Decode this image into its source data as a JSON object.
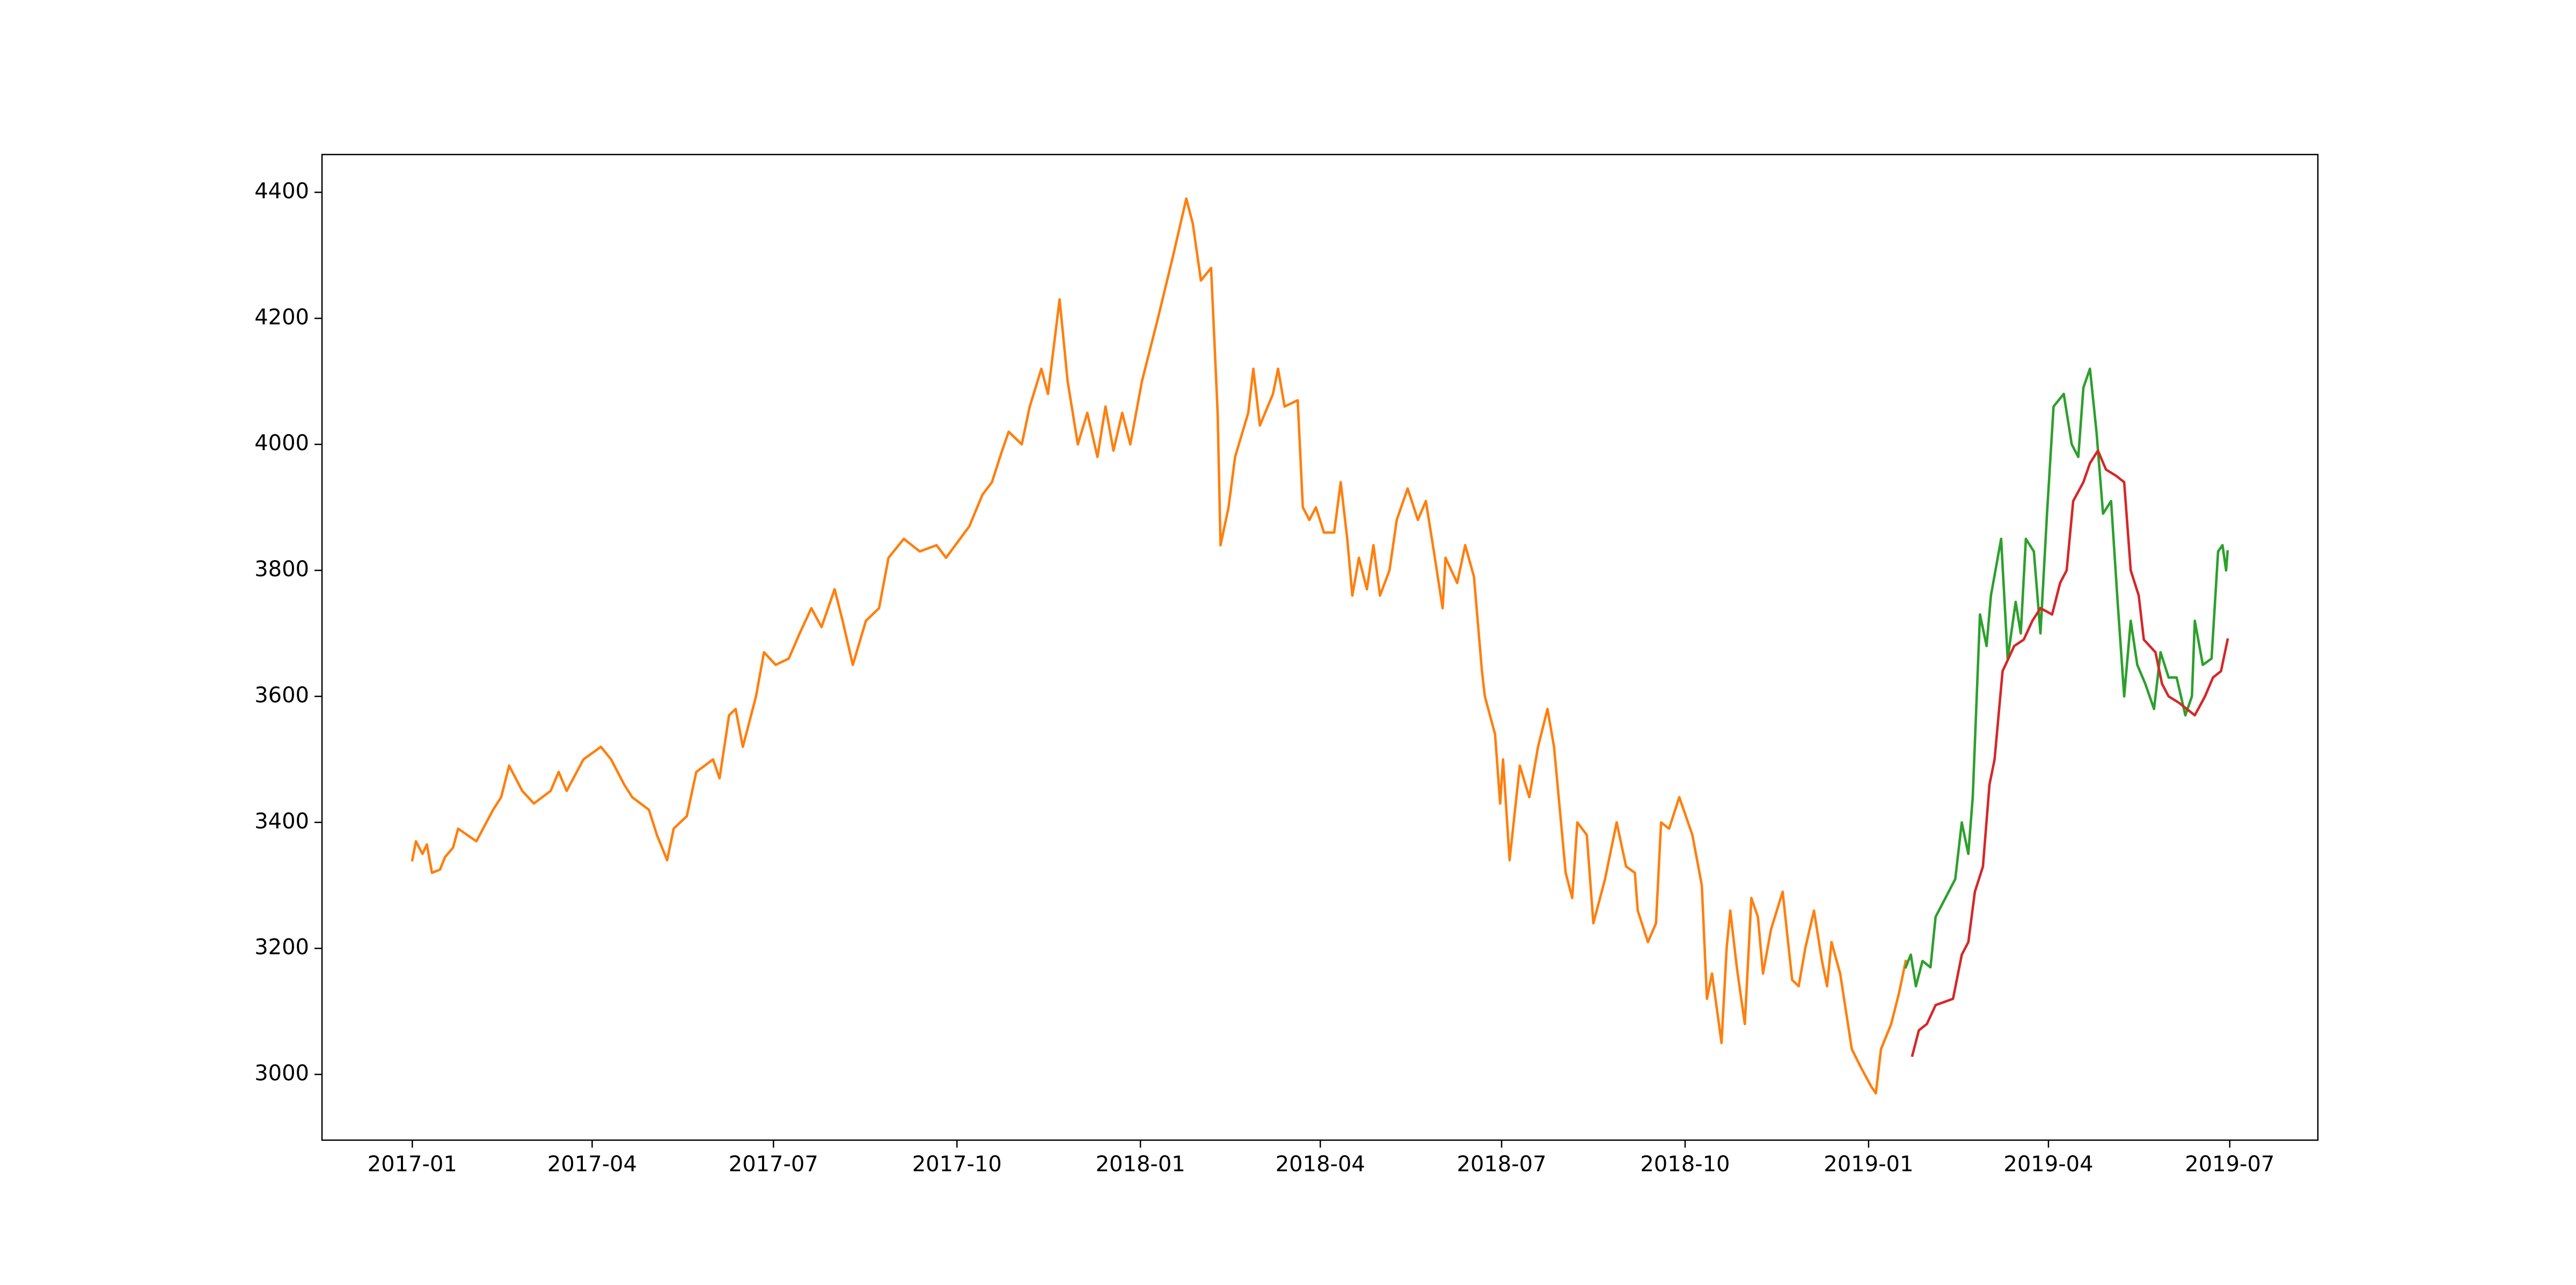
{
  "chart_data": {
    "type": "line",
    "xlim": [
      2016.876,
      2019.617
    ],
    "ylim": [
      2895.7,
      4460
    ],
    "xticks": [
      {
        "value": 2017.0,
        "label": "2017-01"
      },
      {
        "value": 2017.247,
        "label": "2017-04"
      },
      {
        "value": 2017.496,
        "label": "2017-07"
      },
      {
        "value": 2017.748,
        "label": "2017-10"
      },
      {
        "value": 2018.0,
        "label": "2018-01"
      },
      {
        "value": 2018.247,
        "label": "2018-04"
      },
      {
        "value": 2018.496,
        "label": "2018-07"
      },
      {
        "value": 2018.748,
        "label": "2018-10"
      },
      {
        "value": 2019.0,
        "label": "2019-01"
      },
      {
        "value": 2019.247,
        "label": "2019-04"
      },
      {
        "value": 2019.496,
        "label": "2019-07"
      }
    ],
    "yticks": [
      3000,
      3200,
      3400,
      3600,
      3800,
      4000,
      4200,
      4400
    ],
    "grid": false,
    "series": [
      {
        "color": "#ff7f0e",
        "x": [
          2017.0,
          2017.005,
          2017.014,
          2017.02,
          2017.027,
          2017.038,
          2017.045,
          2017.056,
          2017.063,
          2017.088,
          2017.111,
          2017.122,
          2017.133,
          2017.151,
          2017.167,
          2017.19,
          2017.201,
          2017.212,
          2017.235,
          2017.259,
          2017.273,
          2017.291,
          2017.302,
          2017.325,
          2017.336,
          2017.35,
          2017.359,
          2017.377,
          2017.39,
          2017.413,
          2017.422,
          2017.435,
          2017.444,
          2017.454,
          2017.472,
          2017.483,
          2017.499,
          2017.517,
          2017.532,
          2017.548,
          2017.562,
          2017.58,
          2017.591,
          2017.605,
          2017.623,
          2017.641,
          2017.654,
          2017.675,
          2017.697,
          2017.72,
          2017.733,
          2017.765,
          2017.783,
          2017.796,
          2017.81,
          2017.819,
          2017.837,
          2017.848,
          2017.864,
          2017.873,
          2017.889,
          2017.9,
          2017.914,
          2017.927,
          2017.941,
          2017.952,
          2017.963,
          2017.975,
          2017.986,
          2018.002,
          2018.024,
          2018.045,
          2018.063,
          2018.072,
          2018.083,
          2018.097,
          2018.106,
          2018.11,
          2018.121,
          2018.13,
          2018.148,
          2018.155,
          2018.164,
          2018.182,
          2018.189,
          2018.198,
          2018.216,
          2018.223,
          2018.232,
          2018.241,
          2018.252,
          2018.266,
          2018.275,
          2018.284,
          2018.291,
          2018.3,
          2018.311,
          2018.32,
          2018.329,
          2018.342,
          2018.352,
          2018.367,
          2018.381,
          2018.392,
          2018.403,
          2018.415,
          2018.419,
          2018.435,
          2018.446,
          2018.458,
          2018.469,
          2018.473,
          2018.487,
          2018.494,
          2018.498,
          2018.507,
          2018.521,
          2018.534,
          2018.546,
          2018.559,
          2018.568,
          2018.584,
          2018.593,
          2018.6,
          2018.613,
          2018.622,
          2018.638,
          2018.654,
          2018.667,
          2018.679,
          2018.683,
          2018.697,
          2018.708,
          2018.715,
          2018.726,
          2018.74,
          2018.758,
          2018.771,
          2018.778,
          2018.785,
          2018.798,
          2018.805,
          2018.81,
          2018.819,
          2018.83,
          2018.839,
          2018.848,
          2018.855,
          2018.866,
          2018.882,
          2018.895,
          2018.904,
          2018.913,
          2018.925,
          2018.936,
          2018.943,
          2018.949,
          2018.961,
          2018.977,
          2018.99,
          2019.004,
          2019.01,
          2019.017,
          2019.031,
          2019.042,
          2019.051
        ],
        "values": [
          3340,
          3370,
          3350,
          3365,
          3320,
          3325,
          3345,
          3360,
          3390,
          3370,
          3420,
          3440,
          3490,
          3450,
          3430,
          3450,
          3480,
          3450,
          3500,
          3520,
          3500,
          3460,
          3440,
          3420,
          3380,
          3340,
          3390,
          3410,
          3480,
          3500,
          3470,
          3570,
          3580,
          3520,
          3600,
          3670,
          3650,
          3660,
          3700,
          3740,
          3710,
          3770,
          3720,
          3650,
          3720,
          3740,
          3820,
          3850,
          3830,
          3840,
          3820,
          3870,
          3920,
          3940,
          3990,
          4020,
          4000,
          4060,
          4120,
          4080,
          4230,
          4100,
          4000,
          4050,
          3980,
          4060,
          3990,
          4050,
          4000,
          4100,
          4200,
          4300,
          4390,
          4350,
          4260,
          4280,
          4050,
          3840,
          3900,
          3980,
          4050,
          4120,
          4030,
          4080,
          4120,
          4060,
          4070,
          3900,
          3880,
          3900,
          3860,
          3860,
          3940,
          3850,
          3760,
          3820,
          3770,
          3840,
          3760,
          3800,
          3880,
          3930,
          3880,
          3910,
          3830,
          3740,
          3820,
          3780,
          3840,
          3790,
          3640,
          3600,
          3540,
          3430,
          3500,
          3340,
          3490,
          3440,
          3520,
          3580,
          3520,
          3320,
          3280,
          3400,
          3380,
          3240,
          3310,
          3400,
          3330,
          3320,
          3260,
          3210,
          3240,
          3400,
          3390,
          3440,
          3380,
          3300,
          3120,
          3160,
          3050,
          3200,
          3260,
          3170,
          3080,
          3280,
          3250,
          3160,
          3230,
          3290,
          3150,
          3140,
          3200,
          3260,
          3180,
          3140,
          3210,
          3160,
          3040,
          3010,
          2980,
          2970,
          3040,
          3080,
          3130,
          3180
        ]
      },
      {
        "color": "#2ca02c",
        "x": [
          2019.051,
          2019.058,
          2019.065,
          2019.074,
          2019.085,
          2019.092,
          2019.119,
          2019.128,
          2019.137,
          2019.143,
          2019.153,
          2019.162,
          2019.168,
          2019.182,
          2019.191,
          2019.202,
          2019.209,
          2019.216,
          2019.227,
          2019.236,
          2019.245,
          2019.254,
          2019.268,
          2019.279,
          2019.288,
          2019.295,
          2019.304,
          2019.313,
          2019.322,
          2019.333,
          2019.342,
          2019.351,
          2019.36,
          2019.369,
          2019.38,
          2019.392,
          2019.401,
          2019.412,
          2019.423,
          2019.435,
          2019.444,
          2019.448,
          2019.459,
          2019.471,
          2019.48,
          2019.486,
          2019.491,
          2019.493
        ],
        "values": [
          3170,
          3190,
          3140,
          3180,
          3170,
          3250,
          3310,
          3400,
          3350,
          3440,
          3730,
          3680,
          3760,
          3850,
          3660,
          3750,
          3700,
          3850,
          3830,
          3700,
          3890,
          4060,
          4080,
          4000,
          3980,
          4090,
          4120,
          4020,
          3890,
          3910,
          3750,
          3600,
          3720,
          3650,
          3620,
          3580,
          3670,
          3630,
          3630,
          3570,
          3600,
          3720,
          3650,
          3660,
          3830,
          3840,
          3800,
          3830
        ]
      },
      {
        "color": "#d62728",
        "x": [
          2019.06,
          2019.069,
          2019.08,
          2019.092,
          2019.116,
          2019.128,
          2019.137,
          2019.146,
          2019.157,
          2019.166,
          2019.173,
          2019.184,
          2019.2,
          2019.213,
          2019.225,
          2019.236,
          2019.252,
          2019.263,
          2019.272,
          2019.281,
          2019.295,
          2019.304,
          2019.315,
          2019.326,
          2019.34,
          2019.351,
          2019.36,
          2019.371,
          2019.378,
          2019.394,
          2019.403,
          2019.412,
          2019.426,
          2019.437,
          2019.448,
          2019.462,
          2019.473,
          2019.484,
          2019.493
        ],
        "values": [
          3030,
          3070,
          3080,
          3110,
          3120,
          3190,
          3210,
          3290,
          3330,
          3460,
          3500,
          3640,
          3680,
          3690,
          3720,
          3740,
          3730,
          3780,
          3800,
          3910,
          3940,
          3970,
          3990,
          3960,
          3950,
          3940,
          3800,
          3760,
          3690,
          3670,
          3620,
          3600,
          3590,
          3580,
          3570,
          3600,
          3630,
          3640,
          3690
        ]
      }
    ]
  }
}
